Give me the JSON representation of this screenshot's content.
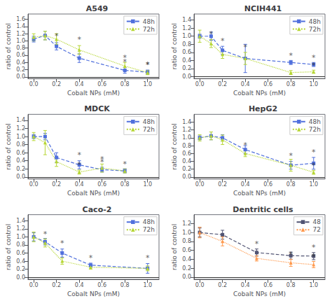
{
  "chart_data": [
    {
      "type": "line",
      "title": "A549",
      "xlabel": "Cobalt NPs (mM)",
      "ylabel": "ratio of control",
      "series": [
        {
          "name": "48h",
          "x": [
            0,
            0.1,
            0.2,
            0.4,
            0.8,
            1.0
          ],
          "values": [
            1.05,
            1.15,
            0.85,
            0.52,
            0.18,
            0.13
          ],
          "errors": [
            0.08,
            0.12,
            0.1,
            0.12,
            0.08,
            0.06
          ],
          "marker": "square",
          "line_style": "dashed"
        },
        {
          "name": "72h",
          "x": [
            0,
            0.1,
            0.2,
            0.4,
            0.8,
            1.0
          ],
          "values": [
            1.1,
            1.15,
            1.05,
            0.75,
            0.3,
            0.12
          ],
          "errors": [
            0.1,
            0.12,
            0.15,
            0.12,
            0.1,
            0.06
          ],
          "marker": "triangle",
          "line_style": "dotted"
        }
      ],
      "annotations": [
        {
          "x": 0.2,
          "y": 1.02,
          "text": "*"
        },
        {
          "x": 0.8,
          "y": 0.29,
          "text": "*"
        },
        {
          "x": 1.0,
          "y": 0.21,
          "text": "*"
        },
        {
          "x": 0.4,
          "y": 0.92,
          "text": "*"
        },
        {
          "x": 0.8,
          "y": 0.42,
          "text": "*"
        },
        {
          "x": 1.0,
          "y": 0.21,
          "text": "*"
        }
      ],
      "hline": 0,
      "xlim": [
        -0.05,
        1.1
      ],
      "xticks": [
        {
          "value": 0,
          "label": "0.0"
        },
        0.2,
        0.4,
        0.6,
        0.8,
        {
          "value": 1.0,
          "label": "1.0"
        }
      ],
      "ylim": [
        -0.05,
        1.75
      ],
      "yticks": [
        {
          "value": 0,
          "label": "0.0"
        },
        0.2,
        0.4,
        0.6,
        0.8,
        {
          "value": 1.0,
          "label": "1.0"
        },
        1.2,
        1.4,
        1.6
      ],
      "grid": false,
      "legend": "upper right"
    },
    {
      "type": "line",
      "title": "NCIH441",
      "xlabel": "Cobalt NPs (mM)",
      "ylabel": "ratio of control",
      "series": [
        {
          "name": "48h",
          "x": [
            0,
            0.1,
            0.2,
            0.4,
            0.8,
            1.0
          ],
          "values": [
            1.0,
            1.0,
            0.65,
            0.45,
            0.35,
            0.3
          ],
          "errors": [
            0.05,
            0.1,
            0.1,
            0.35,
            0.05,
            0.05
          ],
          "marker": "square",
          "line_style": "dashed"
        },
        {
          "name": "72h",
          "x": [
            0,
            0.1,
            0.2,
            0.4,
            0.8,
            1.0
          ],
          "values": [
            1.0,
            0.82,
            0.55,
            0.45,
            0.1,
            0.12
          ],
          "errors": [
            0.15,
            0.1,
            0.1,
            0.15,
            0.05,
            0.04
          ],
          "marker": "triangle",
          "line_style": "dotted"
        }
      ],
      "annotations": [
        {
          "x": 0.2,
          "y": 0.78,
          "text": "*"
        },
        {
          "x": 0.8,
          "y": 0.42,
          "text": "*"
        },
        {
          "x": 1.0,
          "y": 0.37,
          "text": "*"
        },
        {
          "x": 0.1,
          "y": 0.95,
          "text": "*"
        },
        {
          "x": 0.4,
          "y": 0.62,
          "text": "*"
        },
        {
          "x": 1.0,
          "y": 0.18,
          "text": "*"
        }
      ],
      "hline": 0,
      "xlim": [
        -0.05,
        1.1
      ],
      "xticks": [
        {
          "value": 0,
          "label": "0.0"
        },
        0.2,
        0.4,
        0.6,
        0.8,
        {
          "value": 1.0,
          "label": "1.0"
        }
      ],
      "ylim": [
        -0.05,
        1.55
      ],
      "yticks": [
        {
          "value": 0,
          "label": "0.0"
        },
        0.2,
        0.4,
        0.6,
        0.8,
        {
          "value": 1.0,
          "label": "1.0"
        },
        1.2,
        1.4
      ],
      "grid": false,
      "legend": "upper right"
    },
    {
      "type": "line",
      "title": "MDCK",
      "xlabel": "Cobalt NPs (mM)",
      "ylabel": "ratio of control",
      "series": [
        {
          "name": "48h",
          "x": [
            0,
            0.1,
            0.2,
            0.4,
            0.6,
            0.8
          ],
          "values": [
            1.0,
            1.0,
            0.48,
            0.3,
            0.18,
            0.15
          ],
          "errors": [
            0.05,
            0.08,
            0.12,
            0.1,
            0.06,
            0.05
          ],
          "marker": "square",
          "line_style": "dashed"
        },
        {
          "name": "72h",
          "x": [
            0,
            0.1,
            0.2,
            0.4,
            0.6,
            0.8
          ],
          "values": [
            1.0,
            0.85,
            0.38,
            0.12,
            0.22,
            0.15
          ],
          "errors": [
            0.1,
            0.3,
            0.12,
            0.05,
            0.1,
            0.05
          ],
          "marker": "triangle",
          "line_style": "dotted"
        }
      ],
      "annotations": [
        {
          "x": 0.4,
          "y": 0.44,
          "text": "*"
        },
        {
          "x": 0.6,
          "y": 0.27,
          "text": "*"
        },
        {
          "x": 0.8,
          "y": 0.22,
          "text": "*"
        },
        {
          "x": 0.4,
          "y": 0.2,
          "text": "*"
        },
        {
          "x": 0.6,
          "y": 0.34,
          "text": "*"
        }
      ],
      "hline": 0,
      "xlim": [
        -0.05,
        1.1
      ],
      "xticks": [
        {
          "value": 0,
          "label": "0.0"
        },
        0.2,
        0.4,
        0.6,
        0.8,
        {
          "value": 1.0,
          "label": "1.0"
        }
      ],
      "ylim": [
        -0.05,
        1.55
      ],
      "yticks": [
        {
          "value": 0,
          "label": "0.0"
        },
        0.2,
        0.4,
        0.6,
        0.8,
        {
          "value": 1.0,
          "label": "1.0"
        },
        1.2,
        1.4
      ],
      "grid": false,
      "legend": "upper right"
    },
    {
      "type": "line",
      "title": "HepG2",
      "xlabel": "Cobalt NPs (mM)",
      "ylabel": "ratio of control",
      "series": [
        {
          "name": "48h",
          "x": [
            0,
            0.1,
            0.2,
            0.4,
            0.8,
            1.0
          ],
          "values": [
            1.0,
            1.05,
            1.0,
            0.7,
            0.3,
            0.35
          ],
          "errors": [
            0.05,
            0.1,
            0.08,
            0.1,
            0.1,
            0.15
          ],
          "marker": "square",
          "line_style": "dashed"
        },
        {
          "name": "72h",
          "x": [
            0,
            0.1,
            0.2,
            0.4,
            0.8,
            1.0
          ],
          "values": [
            1.0,
            1.05,
            0.95,
            0.6,
            0.3,
            0.12
          ],
          "errors": [
            0.08,
            0.1,
            0.12,
            0.08,
            0.15,
            0.05
          ],
          "marker": "triangle",
          "line_style": "dotted"
        }
      ],
      "annotations": [
        {
          "x": 0.8,
          "y": 0.43,
          "text": "*"
        },
        {
          "x": 1.0,
          "y": 0.53,
          "text": "*"
        },
        {
          "x": 0.4,
          "y": 0.71,
          "text": "*"
        },
        {
          "x": 1.0,
          "y": 0.19,
          "text": "*"
        }
      ],
      "hline": 0,
      "xlim": [
        -0.05,
        1.1
      ],
      "xticks": [
        {
          "value": 0,
          "label": "0.0"
        },
        0.2,
        0.4,
        0.6,
        0.8,
        {
          "value": 1.0,
          "label": "1.0"
        }
      ],
      "ylim": [
        -0.05,
        1.6
      ],
      "yticks": [
        {
          "value": 0,
          "label": "0.0"
        },
        0.2,
        0.4,
        0.6,
        0.8,
        {
          "value": 1.0,
          "label": "1.0"
        },
        1.2,
        1.4
      ],
      "grid": false,
      "legend": "upper right"
    },
    {
      "type": "line",
      "title": "Caco-2",
      "xlabel": "Cobalt NPs (mM)",
      "ylabel": "ratio of control",
      "series": [
        {
          "name": "48h",
          "x": [
            0,
            0.1,
            0.25,
            0.5,
            1.0
          ],
          "values": [
            1.0,
            0.88,
            0.6,
            0.3,
            0.22
          ],
          "errors": [
            0.1,
            0.08,
            0.1,
            0.05,
            0.12
          ],
          "marker": "square",
          "line_style": "dashed"
        },
        {
          "name": "72h",
          "x": [
            0,
            0.1,
            0.25,
            0.5,
            1.0
          ],
          "values": [
            1.0,
            0.85,
            0.4,
            0.25,
            0.22
          ],
          "errors": [
            0.12,
            0.1,
            0.08,
            0.05,
            0.06
          ],
          "marker": "triangle",
          "line_style": "dotted"
        }
      ],
      "annotations": [
        {
          "x": 0.25,
          "y": 0.73,
          "text": "*"
        },
        {
          "x": 0.5,
          "y": 0.37,
          "text": "*"
        },
        {
          "x": 1.0,
          "y": 0.37,
          "text": "*"
        },
        {
          "x": 0.1,
          "y": 0.97,
          "text": "*"
        }
      ],
      "hline": 0,
      "xlim": [
        -0.05,
        1.1
      ],
      "xticks": [
        {
          "value": 0,
          "label": "0.0"
        },
        0.2,
        0.4,
        0.6,
        0.8,
        {
          "value": 1.0,
          "label": "1.0"
        }
      ],
      "ylim": [
        -0.05,
        1.55
      ],
      "yticks": [
        {
          "value": 0,
          "label": "0.0"
        },
        0.2,
        0.4,
        0.6,
        0.8,
        {
          "value": 1.0,
          "label": "1.0"
        },
        1.2,
        1.4
      ],
      "grid": false,
      "legend": "upper right"
    },
    {
      "type": "line",
      "title": "Dentritic cells",
      "xlabel": "Cobalt NPs (mM)",
      "ylabel": "ratio of control",
      "series": [
        {
          "name": "48",
          "x": [
            0,
            0.2,
            0.5,
            0.8,
            1.0
          ],
          "values": [
            1.0,
            0.95,
            0.55,
            0.48,
            0.47
          ],
          "errors": [
            0.1,
            0.1,
            0.08,
            0.08,
            0.08
          ],
          "marker": "square",
          "line_style": "dashed"
        },
        {
          "name": "72",
          "x": [
            0,
            0.2,
            0.5,
            0.8,
            1.0
          ],
          "values": [
            1.0,
            0.8,
            0.42,
            0.32,
            0.28
          ],
          "errors": [
            0.12,
            0.1,
            0.06,
            0.08,
            0.07
          ],
          "marker": "triangle",
          "line_style": "dotted"
        }
      ],
      "annotations": [
        {
          "x": 0.5,
          "y": 0.65,
          "text": "*"
        },
        {
          "x": 1.0,
          "y": 0.57,
          "text": "*"
        },
        {
          "x": 0.8,
          "y": 0.42,
          "text": "*"
        },
        {
          "x": 1.0,
          "y": 0.37,
          "text": "*"
        }
      ],
      "hline": 0,
      "xlim": [
        -0.05,
        1.1
      ],
      "xticks": [
        {
          "value": 0,
          "label": "0.0"
        },
        0.2,
        0.4,
        0.6,
        0.8,
        {
          "value": 1.0,
          "label": "1.0"
        }
      ],
      "ylim": [
        -0.05,
        1.4
      ],
      "yticks": [
        {
          "value": 0,
          "label": "0.0"
        },
        0.2,
        0.4,
        0.6,
        0.8,
        {
          "value": 1.0,
          "label": "1.0"
        },
        1.2
      ],
      "grid": false,
      "legend": "upper right"
    }
  ]
}
